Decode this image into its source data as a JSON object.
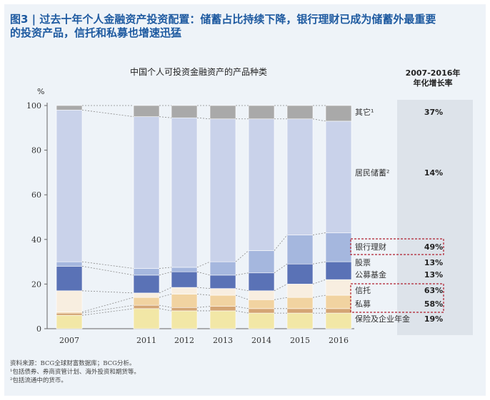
{
  "header": {
    "line1": "图3 | 过去十年个人金融资产投资配置：储蓄占比持续下降，银行理财已成为储蓄外最重要",
    "line2": "的投资产品，信托和私募也增速迅猛"
  },
  "footnotes": [
    "资料来源：BCG全球财富数据库；BCG分析。",
    "¹包括债券、券商资管计划、海外投资和期货等。",
    "²包括流通中的货币。"
  ],
  "chart_data": {
    "type": "bar",
    "stacked": true,
    "title": "中国个人可投资金融资产的产品种类",
    "ylabel": "%",
    "ylim": [
      0,
      100
    ],
    "yticks": [
      0,
      20,
      40,
      60,
      80,
      100
    ],
    "categories": [
      "2007",
      "2011",
      "2012",
      "2013",
      "2014",
      "2015",
      "2016"
    ],
    "growth_header": "2007-2016年\n年化增长率",
    "series": [
      {
        "name": "保险及企业年金",
        "color": "#f2e7a6",
        "growth": "19%",
        "values": [
          6,
          9,
          8,
          8,
          7,
          7,
          7
        ]
      },
      {
        "name": "私募",
        "color": "#d4a574",
        "growth": "58%",
        "highlight": "red-dashed-box-2",
        "values": [
          1,
          1.5,
          1.5,
          2,
          2,
          2,
          2
        ]
      },
      {
        "name": "信托",
        "color": "#f1d3a1",
        "growth": "63%",
        "highlight": "red-dashed-box-2",
        "values": [
          0.5,
          3.5,
          6,
          5,
          4,
          5,
          6
        ]
      },
      {
        "name": "公募基金",
        "color": "#f8eee0",
        "growth": "13%",
        "values": [
          9.5,
          2,
          3,
          3,
          4,
          6,
          7
        ]
      },
      {
        "name": "股票",
        "color": "#5a72b6",
        "growth": "13%",
        "values": [
          11,
          8,
          7,
          6,
          8,
          9,
          8
        ]
      },
      {
        "name": "银行理财",
        "color": "#a5b7de",
        "growth": "49%",
        "highlight": "red-dashed-box-1",
        "values": [
          2,
          3,
          2,
          6,
          10,
          13,
          13
        ]
      },
      {
        "name": "居民储蓄²",
        "color": "#c9d2ea",
        "growth": "14%",
        "values": [
          68,
          68,
          67,
          64,
          59,
          52,
          50
        ]
      },
      {
        "name": "其它¹",
        "color": "#a9a9a9",
        "growth": "37%",
        "values": [
          2,
          5,
          5.5,
          6,
          6,
          6,
          7
        ]
      }
    ]
  }
}
